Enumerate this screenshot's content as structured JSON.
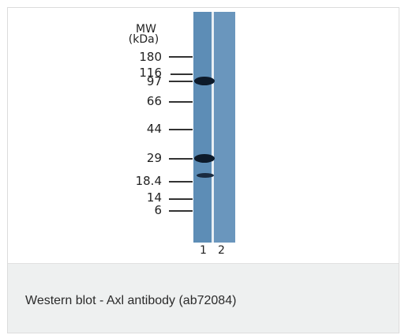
{
  "blot": {
    "mw_title_1": "MW",
    "mw_title_2": "(kDa)",
    "markers": [
      "180",
      "116",
      "97",
      "66",
      "44",
      "29",
      "18.4",
      "14",
      "6"
    ],
    "lanes": [
      "1",
      "2"
    ]
  },
  "caption": "Western blot - Axl antibody (ab72084)"
}
